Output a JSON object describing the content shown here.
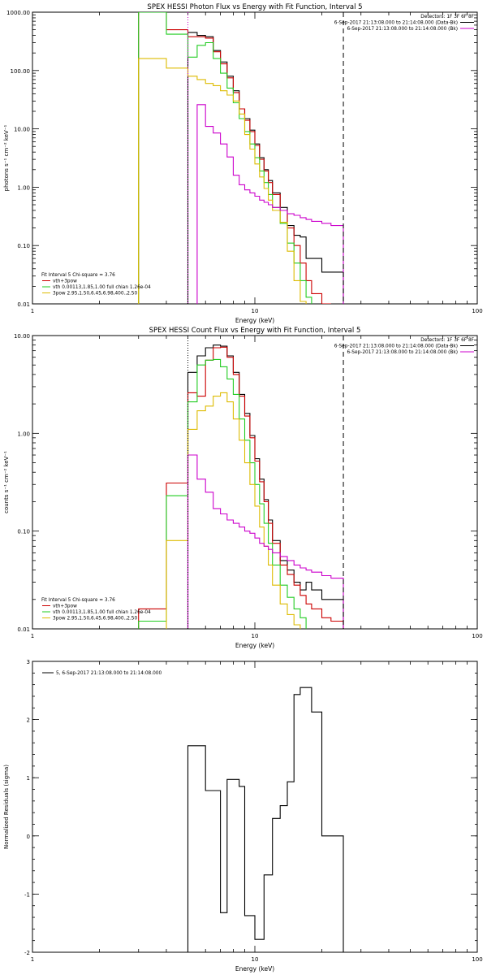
{
  "chart_data": [
    {
      "type": "line",
      "title": "SPEX HESSI Photon Flux vs Energy with Fit Function, Interval 5",
      "xlabel": "Energy (keV)",
      "ylabel": "photons s⁻¹ cm⁻² keV⁻¹",
      "xscale": "log",
      "yscale": "log",
      "xlim": [
        1,
        100
      ],
      "ylim": [
        0.01,
        1000
      ],
      "x_ticks": [
        {
          "v": 1,
          "label": "1"
        },
        {
          "v": 10,
          "label": "10"
        },
        {
          "v": 100,
          "label": "100"
        }
      ],
      "y_ticks": [
        {
          "v": 0.01,
          "label": "0.01"
        },
        {
          "v": 0.1,
          "label": "0.10"
        },
        {
          "v": 1,
          "label": "1.00"
        },
        {
          "v": 10,
          "label": "10.00"
        },
        {
          "v": 100,
          "label": "100.00"
        },
        {
          "v": 1000,
          "label": "1000.00"
        }
      ],
      "header_lines": [
        "Detectors: 1F 3F 6F 8F",
        "6-Sep-2017 21:13:08.000 to 21:14:08.000 (Data-Bk)",
        "6-Sep-2017 21:13:08.000 to 21:14:08.000 (Bk)"
      ],
      "fit_lines": [
        "Fit Interval 5   Chi-square = 3.76",
        "vth+3pow",
        "vth 0.00113,1.85,1.00  full chian 1.26e-04",
        "3pow 2.95,1.50,6.45,6.98,400.,2.50"
      ],
      "vlines": [
        {
          "x": 5.0,
          "color": "#cc00cc",
          "style": "dotted"
        },
        {
          "x": 25.0,
          "color": "#000000",
          "style": "dashed"
        }
      ],
      "edges": [
        3,
        4,
        5,
        5.5,
        6,
        6.5,
        7,
        7.5,
        8,
        8.5,
        9,
        9.5,
        10,
        10.5,
        11,
        11.5,
        12,
        13,
        14,
        15,
        16,
        17,
        18,
        20,
        22,
        25
      ],
      "series": [
        {
          "key": "data",
          "color": "#000000",
          "values": [
            null,
            null,
            450,
            400,
            380,
            220,
            140,
            80,
            45,
            22,
            15,
            9.5,
            5.5,
            3.2,
            2,
            1.3,
            0.8,
            0.45,
            0.22,
            0.15,
            0.14,
            0.06,
            0.06,
            0.035,
            0.035
          ]
        },
        {
          "key": "total",
          "color": "#cc0000",
          "values": [
            1000,
            500,
            380,
            380,
            360,
            210,
            130,
            75,
            42,
            22,
            14,
            9,
            5.2,
            3,
            1.9,
            1.2,
            0.75,
            0.4,
            0.2,
            0.1,
            0.05,
            0.025,
            0.015,
            0.01,
            null
          ]
        },
        {
          "key": "thermal",
          "color": "#22cc22",
          "values": [
            1000,
            420,
            170,
            270,
            300,
            160,
            90,
            50,
            28,
            15,
            9,
            5.5,
            3.2,
            1.9,
            1.2,
            0.75,
            0.45,
            0.24,
            0.11,
            0.05,
            0.025,
            0.013,
            null,
            null,
            null
          ]
        },
        {
          "key": "pow",
          "color": "#ddbb00",
          "values": [
            160,
            110,
            80,
            70,
            60,
            55,
            45,
            38,
            30,
            18,
            8,
            4.5,
            2.5,
            1.5,
            0.95,
            0.6,
            0.4,
            0.25,
            0.08,
            0.025,
            0.011,
            null,
            null,
            null,
            null
          ]
        },
        {
          "key": "bk",
          "color": "#cc00cc",
          "values": [
            null,
            null,
            null,
            26,
            11,
            8.5,
            5.5,
            3.3,
            1.6,
            1.1,
            0.9,
            0.8,
            0.7,
            0.6,
            0.55,
            0.5,
            0.45,
            0.4,
            0.35,
            0.33,
            0.3,
            0.28,
            0.26,
            0.24,
            0.22
          ]
        }
      ]
    },
    {
      "type": "line",
      "title": "SPEX HESSI Count Flux vs Energy with Fit Function, Interval 5",
      "xlabel": "Energy (keV)",
      "ylabel": "counts s⁻¹ cm⁻² keV⁻¹",
      "xscale": "log",
      "yscale": "log",
      "xlim": [
        1,
        100
      ],
      "ylim": [
        0.01,
        10
      ],
      "x_ticks": [
        {
          "v": 1,
          "label": "1"
        },
        {
          "v": 10,
          "label": "10"
        },
        {
          "v": 100,
          "label": "100"
        }
      ],
      "y_ticks": [
        {
          "v": 0.01,
          "label": "0.01"
        },
        {
          "v": 0.1,
          "label": "0.10"
        },
        {
          "v": 1,
          "label": "1.00"
        },
        {
          "v": 10,
          "label": "10.00"
        }
      ],
      "header_lines": [
        "Detectors: 1F 3F 6F 8F",
        "6-Sep-2017 21:13:08.000 to 21:14:08.000 (Data-Bk)",
        "6-Sep-2017 21:13:08.000 to 21:14:08.000 (Bk)"
      ],
      "fit_lines": [
        "Fit Interval 5   Chi-square = 3.76",
        "vth+3pow",
        "vth 0.00113,1.85,1.00  full chian 1.26e-04",
        "3pow 2.95,1.50,6.45,6.98,400.,2.50"
      ],
      "vlines": [
        {
          "x": 5.0,
          "color": "#000000",
          "style": "dotted"
        },
        {
          "x": 25.0,
          "color": "#000000",
          "style": "dashed"
        }
      ],
      "edges": [
        3,
        4,
        5,
        5.5,
        6,
        6.5,
        7,
        7.5,
        8,
        8.5,
        9,
        9.5,
        10,
        10.5,
        11,
        11.5,
        12,
        13,
        14,
        15,
        16,
        17,
        18,
        20,
        22,
        25
      ],
      "series": [
        {
          "key": "data",
          "color": "#000000",
          "values": [
            null,
            null,
            4.2,
            6.2,
            7.5,
            8.0,
            7.8,
            6.2,
            4.2,
            2.5,
            1.6,
            0.95,
            0.55,
            0.34,
            0.21,
            0.13,
            0.08,
            0.05,
            0.04,
            0.03,
            0.025,
            0.03,
            0.025,
            0.02,
            0.02
          ]
        },
        {
          "key": "total",
          "color": "#cc0000",
          "values": [
            0.016,
            0.31,
            2.6,
            2.4,
            5.6,
            7.5,
            7.6,
            6.0,
            4.0,
            2.4,
            1.5,
            0.9,
            0.52,
            0.32,
            0.2,
            0.12,
            0.075,
            0.045,
            0.036,
            0.028,
            0.022,
            0.018,
            0.016,
            0.013,
            0.012
          ]
        },
        {
          "key": "thermal",
          "color": "#22cc22",
          "values": [
            0.012,
            0.23,
            2.1,
            5.0,
            5.6,
            5.7,
            4.8,
            3.6,
            2.5,
            1.4,
            0.85,
            0.5,
            0.3,
            0.19,
            0.12,
            0.075,
            0.045,
            0.028,
            0.021,
            0.016,
            0.013,
            null,
            null,
            null,
            null
          ]
        },
        {
          "key": "pow",
          "color": "#ddbb00",
          "values": [
            null,
            0.08,
            1.1,
            1.7,
            1.9,
            2.4,
            2.6,
            2.1,
            1.4,
            0.85,
            0.5,
            0.3,
            0.18,
            0.11,
            0.07,
            0.045,
            0.028,
            0.018,
            0.014,
            0.011,
            null,
            null,
            null,
            null,
            null
          ]
        },
        {
          "key": "bk",
          "color": "#cc00cc",
          "values": [
            null,
            null,
            0.6,
            0.34,
            0.25,
            0.17,
            0.15,
            0.13,
            0.12,
            0.11,
            0.1,
            0.095,
            0.085,
            0.075,
            0.07,
            0.065,
            0.06,
            0.055,
            0.05,
            0.045,
            0.042,
            0.04,
            0.038,
            0.035,
            0.033
          ]
        }
      ]
    },
    {
      "type": "line",
      "title": "",
      "xlabel": "Energy (keV)",
      "ylabel": "Normalized Residuals (sigma)",
      "xscale": "log",
      "yscale": "linear",
      "xlim": [
        1,
        100
      ],
      "ylim": [
        -2,
        3
      ],
      "x_ticks": [
        {
          "v": 1,
          "label": "1"
        },
        {
          "v": 10,
          "label": "10"
        },
        {
          "v": 100,
          "label": "100"
        }
      ],
      "y_ticks": [
        {
          "v": -2,
          "label": "-2"
        },
        {
          "v": -1,
          "label": "-1"
        },
        {
          "v": 0,
          "label": "0"
        },
        {
          "v": 1,
          "label": "1"
        },
        {
          "v": 2,
          "label": "2"
        },
        {
          "v": 3,
          "label": "3"
        }
      ],
      "legend_label": "5,  6-Sep-2017 21:13:08.000 to 21:14:08.000",
      "edges": [
        5,
        6,
        7,
        7.5,
        8.5,
        9,
        10,
        11,
        12,
        13,
        14,
        15,
        16,
        18,
        20,
        22,
        25
      ],
      "series": [
        {
          "key": "residuals",
          "color": "#000000",
          "values": [
            1.55,
            0.78,
            -1.32,
            0.97,
            0.85,
            -1.37,
            -1.78,
            -0.67,
            0.3,
            0.52,
            0.93,
            2.43,
            2.55,
            2.13,
            0.0,
            0.0
          ]
        }
      ]
    }
  ]
}
